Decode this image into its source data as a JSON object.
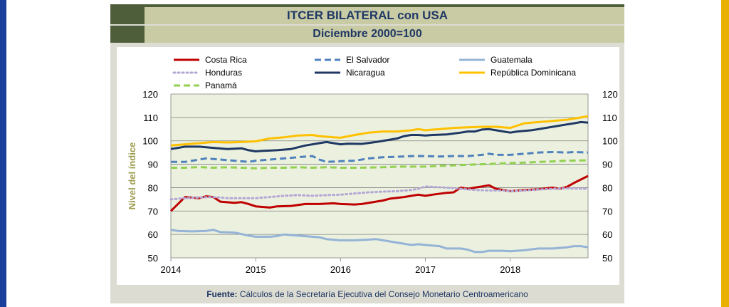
{
  "header": {
    "title": "ITCER BILATERAL con USA",
    "subtitle": "Diciembre 2000=100"
  },
  "source": {
    "label": "Fuente:",
    "text": "Cálculos de la Secretaría Ejecutiva del Consejo Monetario Centroamericano"
  },
  "colors": {
    "left_bar": "#1a3f9c",
    "right_bar": "#e8b000",
    "header_strip": "#4f5e3a",
    "title_bg": "#c9cba5",
    "plot_bg": "#ebf1de",
    "grid": "#7f7f7f"
  },
  "chart_data": {
    "type": "line",
    "title": "ITCER BILATERAL con USA",
    "subtitle": "Diciembre 2000=100",
    "ylabel": "Nivel del índice",
    "xlabel": "",
    "ylim": [
      50,
      120
    ],
    "xlim": [
      2014,
      2018.917
    ],
    "yticks": [
      "50",
      "60",
      "70",
      "80",
      "90",
      "100",
      "110",
      "120"
    ],
    "xticks": [
      "2014",
      "2015",
      "2016",
      "2017",
      "2018"
    ],
    "grid": "horizontal",
    "legend_position": "top",
    "series": [
      {
        "name": "Costa Rica",
        "color": "#c00000",
        "dash": "solid",
        "points": [
          [
            2014,
            70
          ],
          [
            2014.167,
            76
          ],
          [
            2014.333,
            75.5
          ],
          [
            2014.417,
            76.3
          ],
          [
            2014.5,
            76
          ],
          [
            2014.583,
            74
          ],
          [
            2014.75,
            73.5
          ],
          [
            2014.833,
            73.8
          ],
          [
            2014.917,
            73
          ],
          [
            2015,
            72
          ],
          [
            2015.167,
            71.5
          ],
          [
            2015.25,
            72
          ],
          [
            2015.417,
            72.2
          ],
          [
            2015.583,
            73
          ],
          [
            2015.75,
            73
          ],
          [
            2015.917,
            73.3
          ],
          [
            2016,
            73
          ],
          [
            2016.167,
            72.8
          ],
          [
            2016.25,
            73
          ],
          [
            2016.417,
            74
          ],
          [
            2016.5,
            74.5
          ],
          [
            2016.583,
            75.3
          ],
          [
            2016.75,
            76
          ],
          [
            2016.917,
            77
          ],
          [
            2017,
            76.5
          ],
          [
            2017.083,
            77
          ],
          [
            2017.25,
            77.8
          ],
          [
            2017.333,
            78
          ],
          [
            2017.417,
            80
          ],
          [
            2017.5,
            79.5
          ],
          [
            2017.583,
            80
          ],
          [
            2017.667,
            80.5
          ],
          [
            2017.75,
            81
          ],
          [
            2017.833,
            79.5
          ],
          [
            2018,
            78.5
          ],
          [
            2018.167,
            79
          ],
          [
            2018.333,
            79.3
          ],
          [
            2018.5,
            80
          ],
          [
            2018.583,
            79.5
          ],
          [
            2018.667,
            80.3
          ],
          [
            2018.75,
            82
          ],
          [
            2018.917,
            85
          ]
        ]
      },
      {
        "name": "El Salvador",
        "color": "#4f81bd",
        "dash": "dashed",
        "points": [
          [
            2014,
            91
          ],
          [
            2014.167,
            91
          ],
          [
            2014.333,
            92
          ],
          [
            2014.417,
            92.5
          ],
          [
            2014.583,
            92
          ],
          [
            2014.75,
            91.5
          ],
          [
            2014.917,
            91
          ],
          [
            2015,
            91.5
          ],
          [
            2015.167,
            92
          ],
          [
            2015.333,
            92.5
          ],
          [
            2015.5,
            93
          ],
          [
            2015.667,
            93.5
          ],
          [
            2015.75,
            92
          ],
          [
            2015.833,
            91
          ],
          [
            2016,
            91.3
          ],
          [
            2016.167,
            91.5
          ],
          [
            2016.333,
            92.5
          ],
          [
            2016.5,
            93
          ],
          [
            2016.667,
            93.2
          ],
          [
            2016.833,
            93.5
          ],
          [
            2017,
            93.5
          ],
          [
            2017.167,
            93.3
          ],
          [
            2017.333,
            93.5
          ],
          [
            2017.5,
            93.5
          ],
          [
            2017.667,
            94
          ],
          [
            2017.75,
            94.5
          ],
          [
            2017.833,
            94
          ],
          [
            2018,
            94
          ],
          [
            2018.167,
            94.5
          ],
          [
            2018.333,
            95
          ],
          [
            2018.5,
            95.2
          ],
          [
            2018.667,
            95
          ],
          [
            2018.75,
            95.2
          ],
          [
            2018.917,
            95
          ]
        ]
      },
      {
        "name": "Guatemala",
        "color": "#95b3d7",
        "dash": "solid",
        "points": [
          [
            2014,
            62
          ],
          [
            2014.083,
            61.5
          ],
          [
            2014.25,
            61.3
          ],
          [
            2014.417,
            61.5
          ],
          [
            2014.5,
            62
          ],
          [
            2014.583,
            61
          ],
          [
            2014.75,
            60.8
          ],
          [
            2014.917,
            59.5
          ],
          [
            2015,
            59
          ],
          [
            2015.167,
            59
          ],
          [
            2015.25,
            59.3
          ],
          [
            2015.333,
            60
          ],
          [
            2015.5,
            59.5
          ],
          [
            2015.667,
            59
          ],
          [
            2015.75,
            58.8
          ],
          [
            2015.833,
            58
          ],
          [
            2016,
            57.5
          ],
          [
            2016.167,
            57.5
          ],
          [
            2016.333,
            57.8
          ],
          [
            2016.417,
            58
          ],
          [
            2016.5,
            57.5
          ],
          [
            2016.667,
            56.5
          ],
          [
            2016.833,
            55.5
          ],
          [
            2016.917,
            55.8
          ],
          [
            2017,
            55.5
          ],
          [
            2017.167,
            55
          ],
          [
            2017.25,
            54
          ],
          [
            2017.417,
            54
          ],
          [
            2017.5,
            53.5
          ],
          [
            2017.583,
            52.5
          ],
          [
            2017.667,
            52.5
          ],
          [
            2017.75,
            53
          ],
          [
            2017.917,
            53
          ],
          [
            2018,
            52.8
          ],
          [
            2018.167,
            53.3
          ],
          [
            2018.333,
            54
          ],
          [
            2018.5,
            54
          ],
          [
            2018.667,
            54.5
          ],
          [
            2018.75,
            55
          ],
          [
            2018.833,
            55
          ],
          [
            2018.917,
            54.5
          ]
        ]
      },
      {
        "name": "Honduras",
        "color": "#b4a7d6",
        "dash": "dotted",
        "points": [
          [
            2014,
            75
          ],
          [
            2014.167,
            75.5
          ],
          [
            2014.333,
            75.8
          ],
          [
            2014.5,
            76
          ],
          [
            2014.667,
            75.5
          ],
          [
            2014.833,
            75.5
          ],
          [
            2015,
            75.5
          ],
          [
            2015.167,
            76
          ],
          [
            2015.333,
            76.5
          ],
          [
            2015.5,
            76.8
          ],
          [
            2015.667,
            76.5
          ],
          [
            2015.833,
            76.8
          ],
          [
            2016,
            77
          ],
          [
            2016.167,
            77.5
          ],
          [
            2016.333,
            78
          ],
          [
            2016.5,
            78.3
          ],
          [
            2016.667,
            78.5
          ],
          [
            2016.833,
            79
          ],
          [
            2016.917,
            79.5
          ],
          [
            2017,
            80.5
          ],
          [
            2017.083,
            80.3
          ],
          [
            2017.25,
            80
          ],
          [
            2017.417,
            79.5
          ],
          [
            2017.583,
            79
          ],
          [
            2017.75,
            78.8
          ],
          [
            2017.917,
            78.8
          ],
          [
            2018,
            78.5
          ],
          [
            2018.167,
            78.8
          ],
          [
            2018.333,
            79.2
          ],
          [
            2018.5,
            79.5
          ],
          [
            2018.667,
            79.7
          ],
          [
            2018.917,
            79.5
          ]
        ]
      },
      {
        "name": "Nicaragua",
        "color": "#1f3864",
        "dash": "solid",
        "points": [
          [
            2014,
            96.5
          ],
          [
            2014.083,
            97
          ],
          [
            2014.167,
            97.5
          ],
          [
            2014.333,
            97.5
          ],
          [
            2014.5,
            97
          ],
          [
            2014.667,
            96.5
          ],
          [
            2014.833,
            96.8
          ],
          [
            2014.917,
            96
          ],
          [
            2015,
            95.5
          ],
          [
            2015.083,
            95.7
          ],
          [
            2015.25,
            96
          ],
          [
            2015.417,
            96.5
          ],
          [
            2015.583,
            98
          ],
          [
            2015.75,
            99
          ],
          [
            2015.833,
            99.5
          ],
          [
            2015.917,
            99
          ],
          [
            2016,
            98.5
          ],
          [
            2016.083,
            98.8
          ],
          [
            2016.25,
            98.7
          ],
          [
            2016.417,
            99.5
          ],
          [
            2016.583,
            100.5
          ],
          [
            2016.667,
            101
          ],
          [
            2016.75,
            102
          ],
          [
            2016.833,
            102.5
          ],
          [
            2016.917,
            102.5
          ],
          [
            2017,
            102.3
          ],
          [
            2017.083,
            102.5
          ],
          [
            2017.25,
            102.7
          ],
          [
            2017.417,
            103.5
          ],
          [
            2017.5,
            104
          ],
          [
            2017.583,
            104
          ],
          [
            2017.667,
            104.8
          ],
          [
            2017.75,
            105
          ],
          [
            2017.833,
            104.5
          ],
          [
            2018,
            103.5
          ],
          [
            2018.083,
            104
          ],
          [
            2018.25,
            104.5
          ],
          [
            2018.333,
            105
          ],
          [
            2018.5,
            106
          ],
          [
            2018.667,
            107
          ],
          [
            2018.75,
            107.5
          ],
          [
            2018.833,
            108
          ],
          [
            2018.917,
            107.8
          ]
        ]
      },
      {
        "name": "República Dominicana",
        "color": "#ffc000",
        "dash": "solid",
        "points": [
          [
            2014,
            98
          ],
          [
            2014.167,
            98.5
          ],
          [
            2014.333,
            99
          ],
          [
            2014.5,
            99.5
          ],
          [
            2014.667,
            99.3
          ],
          [
            2014.833,
            99.5
          ],
          [
            2015,
            99.8
          ],
          [
            2015.167,
            101
          ],
          [
            2015.333,
            101.5
          ],
          [
            2015.5,
            102.3
          ],
          [
            2015.667,
            102.5
          ],
          [
            2015.75,
            102
          ],
          [
            2015.917,
            101.5
          ],
          [
            2016,
            101.3
          ],
          [
            2016.167,
            102.5
          ],
          [
            2016.333,
            103.5
          ],
          [
            2016.5,
            104
          ],
          [
            2016.667,
            104
          ],
          [
            2016.833,
            104.5
          ],
          [
            2016.917,
            105
          ],
          [
            2017,
            104.5
          ],
          [
            2017.167,
            105
          ],
          [
            2017.333,
            105.5
          ],
          [
            2017.5,
            105.8
          ],
          [
            2017.667,
            106
          ],
          [
            2017.833,
            106
          ],
          [
            2017.917,
            105.8
          ],
          [
            2018,
            105.5
          ],
          [
            2018.167,
            107.5
          ],
          [
            2018.333,
            108
          ],
          [
            2018.5,
            108.5
          ],
          [
            2018.667,
            109
          ],
          [
            2018.833,
            110
          ],
          [
            2018.917,
            110.5
          ]
        ]
      },
      {
        "name": "Panamá",
        "color": "#92d050",
        "dash": "dashed",
        "points": [
          [
            2014,
            88.5
          ],
          [
            2014.167,
            88.5
          ],
          [
            2014.333,
            88.8
          ],
          [
            2014.5,
            88.5
          ],
          [
            2014.667,
            88.7
          ],
          [
            2014.833,
            88.5
          ],
          [
            2015,
            88.3
          ],
          [
            2015.167,
            88.5
          ],
          [
            2015.333,
            88.5
          ],
          [
            2015.5,
            88.7
          ],
          [
            2015.667,
            88.5
          ],
          [
            2015.833,
            88.7
          ],
          [
            2016,
            88.5
          ],
          [
            2016.167,
            88.5
          ],
          [
            2016.333,
            88.6
          ],
          [
            2016.5,
            88.7
          ],
          [
            2016.667,
            89
          ],
          [
            2016.833,
            89
          ],
          [
            2017,
            89
          ],
          [
            2017.167,
            89.3
          ],
          [
            2017.333,
            89.5
          ],
          [
            2017.5,
            89.8
          ],
          [
            2017.667,
            90
          ],
          [
            2017.833,
            90.2
          ],
          [
            2018,
            90.5
          ],
          [
            2018.167,
            90.7
          ],
          [
            2018.333,
            91
          ],
          [
            2018.5,
            91.2
          ],
          [
            2018.667,
            91.5
          ],
          [
            2018.917,
            91.7
          ]
        ]
      }
    ]
  }
}
